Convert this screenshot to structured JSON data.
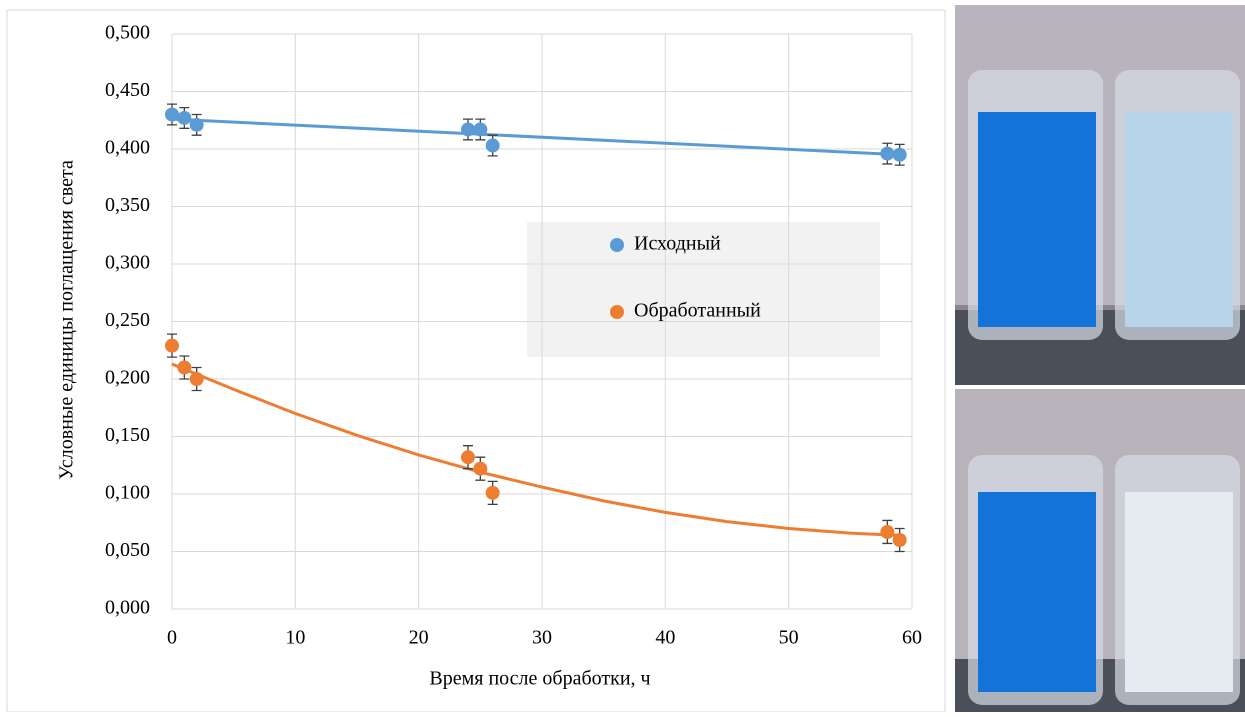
{
  "chart_data": {
    "type": "scatter",
    "x_label": "Время после обработки, ч",
    "y_label": "Условные единицы поглащения света",
    "xlim": [
      0,
      60
    ],
    "xticks": [
      0,
      10,
      20,
      30,
      40,
      50,
      60
    ],
    "ylim": [
      0,
      0.5
    ],
    "yticks": [
      {
        "value": 0,
        "label": "0,000"
      },
      {
        "value": 0.05,
        "label": "0,050"
      },
      {
        "value": 0.1,
        "label": "0,100"
      },
      {
        "value": 0.15,
        "label": "0,150"
      },
      {
        "value": 0.2,
        "label": "0,200"
      },
      {
        "value": 0.25,
        "label": "0,250"
      },
      {
        "value": 0.3,
        "label": "0,300"
      },
      {
        "value": 0.35,
        "label": "0,350"
      },
      {
        "value": 0.4,
        "label": "0,400"
      },
      {
        "value": 0.45,
        "label": "0,450"
      },
      {
        "value": 0.5,
        "label": "0,500"
      }
    ],
    "grid": true,
    "series": [
      {
        "name": "Исходный",
        "color": "#5b9bd5",
        "x": [
          0,
          1,
          2,
          24,
          25,
          26,
          58,
          59
        ],
        "values": [
          0.43,
          0.427,
          0.421,
          0.417,
          0.417,
          0.403,
          0.396,
          0.395
        ],
        "errors": [
          0.009,
          0.009,
          0.009,
          0.009,
          0.009,
          0.009,
          0.009,
          0.009
        ],
        "trend": {
          "x": [
            0,
            59
          ],
          "values": [
            0.426,
            0.395
          ]
        }
      },
      {
        "name": "Обработанный",
        "color": "#ed7d31",
        "x": [
          0,
          1,
          2,
          24,
          25,
          26,
          58,
          59
        ],
        "values": [
          0.229,
          0.21,
          0.2,
          0.132,
          0.122,
          0.101,
          0.067,
          0.06
        ],
        "errors": [
          0.01,
          0.01,
          0.01,
          0.01,
          0.01,
          0.01,
          0.01,
          0.01
        ],
        "trend": {
          "x": [
            0,
            5,
            10,
            15,
            20,
            25,
            30,
            35,
            40,
            45,
            50,
            55,
            59
          ],
          "values": [
            0.213,
            0.191,
            0.17,
            0.151,
            0.134,
            0.119,
            0.106,
            0.094,
            0.084,
            0.076,
            0.07,
            0.066,
            0.064
          ]
        }
      }
    ]
  }
}
